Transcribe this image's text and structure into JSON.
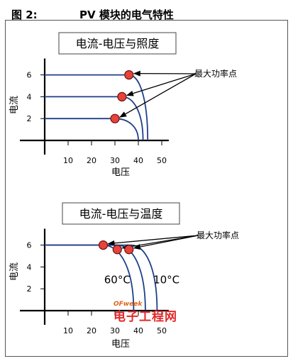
{
  "figure": {
    "number": "图 2:",
    "title": "PV 模块的电气特性",
    "watermark": {
      "brand": "OFweek",
      "site": "电子工程网"
    }
  },
  "chart_data": [
    {
      "type": "line",
      "title": "电流-电压与照度",
      "xlabel": "电压",
      "ylabel": "电流",
      "xlim": [
        0,
        53
      ],
      "ylim": [
        0,
        7.5
      ],
      "xticks": [
        10,
        20,
        30,
        40,
        50
      ],
      "yticks": [
        2,
        4,
        6
      ],
      "annotation": "最大功率点",
      "series": [
        {
          "isc": 6,
          "voc": 44,
          "knee": 36,
          "mpp": {
            "x": 36,
            "y": 6
          }
        },
        {
          "isc": 4,
          "voc": 42,
          "knee": 33,
          "mpp": {
            "x": 33,
            "y": 4
          }
        },
        {
          "isc": 2,
          "voc": 40,
          "knee": 30,
          "mpp": {
            "x": 30,
            "y": 2
          }
        }
      ]
    },
    {
      "type": "line",
      "title": "电流-电压与温度",
      "xlabel": "电压",
      "ylabel": "电流",
      "xlim": [
        0,
        53
      ],
      "ylim": [
        0,
        7.5
      ],
      "xticks": [
        10,
        20,
        30,
        40,
        50
      ],
      "yticks": [
        2,
        4,
        6
      ],
      "annotation": "最大功率点",
      "temp_labels": [
        {
          "text": "60°C",
          "x": 31,
          "y": 2.5
        },
        {
          "text": "10°C",
          "x": 52,
          "y": 2.5
        }
      ],
      "series": [
        {
          "isc": 6,
          "voc": 38,
          "knee": 25,
          "mpp": {
            "x": 25,
            "y": 6
          }
        },
        {
          "isc": 6,
          "voc": 43,
          "knee": 31,
          "mpp": {
            "x": 31,
            "y": 5.6
          }
        },
        {
          "isc": 6,
          "voc": 48,
          "knee": 37,
          "mpp": {
            "x": 36,
            "y": 5.6
          }
        }
      ]
    }
  ],
  "colors": {
    "curve": "#1f3f8c",
    "point_fill": "#e8433a",
    "point_stroke": "#6b1010",
    "axis": "#000000"
  }
}
